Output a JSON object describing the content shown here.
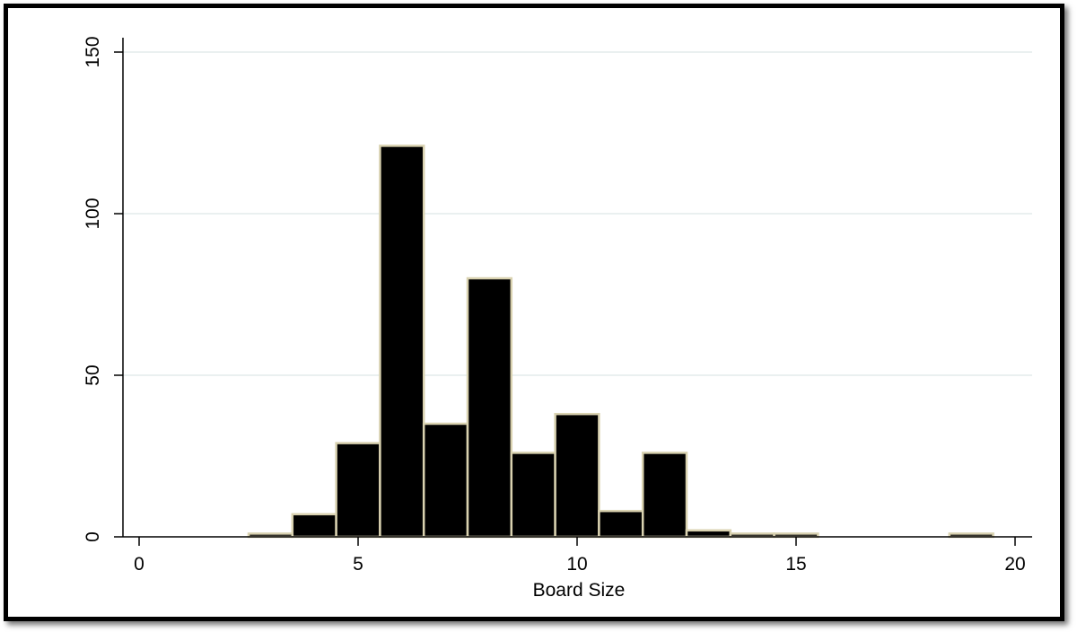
{
  "chart_data": {
    "type": "bar",
    "title": "",
    "xlabel": "Board Size",
    "ylabel": "",
    "xlim": [
      0,
      20
    ],
    "ylim": [
      0,
      150
    ],
    "x_ticks": [
      0,
      5,
      10,
      15,
      20
    ],
    "y_ticks": [
      0,
      50,
      100,
      150
    ],
    "grid": true,
    "bin_width": 1,
    "bins": [
      {
        "x": 3,
        "value": 1
      },
      {
        "x": 4,
        "value": 7
      },
      {
        "x": 5,
        "value": 29
      },
      {
        "x": 6,
        "value": 121
      },
      {
        "x": 7,
        "value": 35
      },
      {
        "x": 8,
        "value": 80
      },
      {
        "x": 9,
        "value": 26
      },
      {
        "x": 10,
        "value": 38
      },
      {
        "x": 11,
        "value": 8
      },
      {
        "x": 12,
        "value": 26
      },
      {
        "x": 13,
        "value": 2
      },
      {
        "x": 14,
        "value": 1
      },
      {
        "x": 15,
        "value": 1
      },
      {
        "x": 19,
        "value": 1
      }
    ],
    "colors": {
      "bar_fill": "#000000",
      "bar_edge": "#d9d2b0",
      "grid": "#e4ecec",
      "axis": "#000000"
    }
  }
}
